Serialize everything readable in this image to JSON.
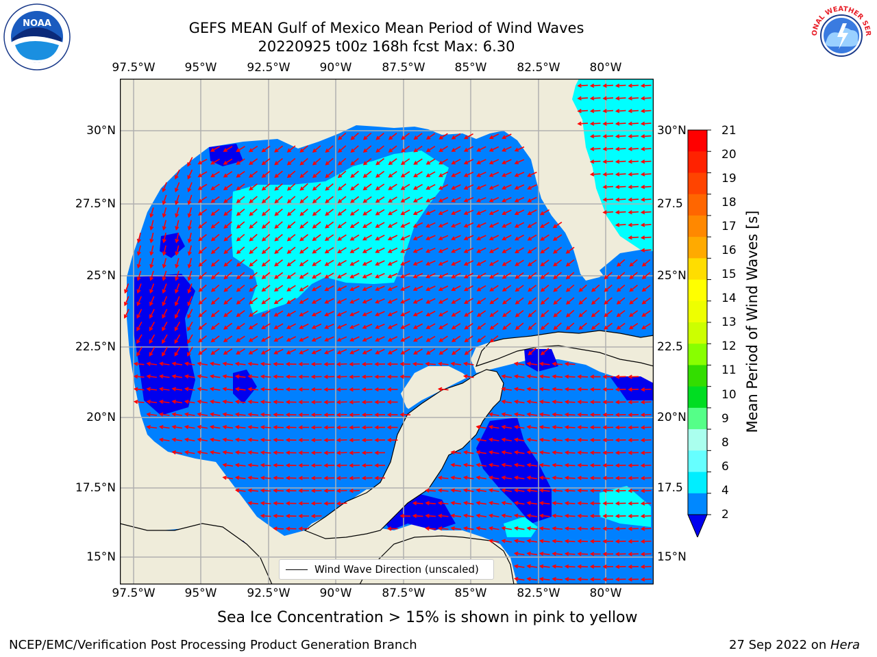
{
  "title": {
    "line1": "GEFS MEAN Gulf of Mexico Mean Period of Wind Waves",
    "line2": "20220925 t00z 168h fcst   Max: 6.30"
  },
  "axes": {
    "lon_ticks": [
      "97.5°W",
      "95°W",
      "92.5°W",
      "90°W",
      "87.5°W",
      "85°W",
      "82.5°W",
      "80°W"
    ],
    "lat_ticks_left": [
      "30°N",
      "27.5°N",
      "25°N",
      "22.5°N",
      "20°N",
      "17.5°N",
      "15°N"
    ],
    "lat_ticks_right": [
      "30°N",
      "27.5",
      "25°N",
      "22.5",
      "20°N",
      "17.5",
      "15°N"
    ],
    "lon_range": [
      -98,
      -78.2
    ],
    "lat_range": [
      14.0,
      31.8
    ]
  },
  "legend": {
    "label": "Wind Wave Direction (unscaled)"
  },
  "colorbar": {
    "title": "Mean Period of Wind Waves [s]",
    "labels": [
      "21",
      "20",
      "19",
      "18",
      "17",
      "16",
      "15",
      "14",
      "13",
      "12",
      "11",
      "10",
      "9",
      "8",
      "6",
      "4",
      "2"
    ],
    "colors": [
      "#ff0000",
      "#ff2200",
      "#ff4400",
      "#ff6600",
      "#ff8800",
      "#ffaa00",
      "#ffdd00",
      "#ffff00",
      "#eeff00",
      "#ccff00",
      "#88ff00",
      "#33dd00",
      "#00dd22",
      "#55ff88",
      "#aaffee",
      "#66ffff",
      "#00eeff",
      "#0088ff"
    ],
    "extend_color": "#0000ee"
  },
  "map_colors": {
    "land": "#efecda",
    "ocean_2_4": "#0080ff",
    "ocean_under_2": "#0000ee",
    "ocean_4_6": "#00ffff",
    "arrow": "#ff0000",
    "grid": "#b0b0b0"
  },
  "footnote": "Sea Ice Concentration > 15% is shown in pink to yellow",
  "credit": {
    "left": "NCEP/EMC/Verification Post Processing Product Generation Branch",
    "right_date": "27 Sep 2022 on ",
    "right_machine": "Hera"
  },
  "logos": {
    "left": "noaa-logo",
    "left_text": "NOAA",
    "right": "nws-logo",
    "right_text": "NATIONAL WEATHER SERVICE"
  }
}
